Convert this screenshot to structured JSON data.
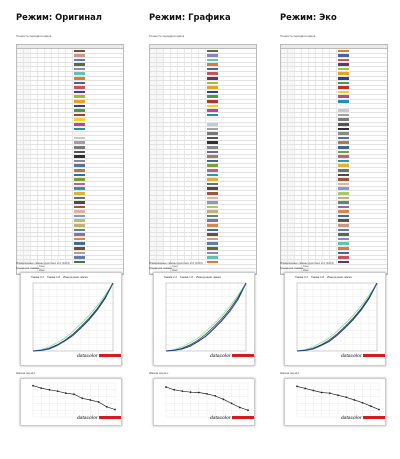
{
  "modes": [
    {
      "title": "Режим: Оригинал"
    },
    {
      "title": "Режим: Графика"
    },
    {
      "title": "Режим: Эко"
    }
  ],
  "captions": {
    "accuracy": "Точность передачи цвета",
    "gamma_heading": "Измеренные гаммы дисплея 2.2 (0.04)",
    "gamma_sub": "Градация гаммы",
    "brightness_heading": "Шкала серого",
    "footer_avg": "Сред.",
    "footer_max": "Макс."
  },
  "logo": {
    "text": "datacolor"
  },
  "swatch_colors": [
    "#6a5138",
    "#c69a88",
    "#5f7fa6",
    "#5a6b3d",
    "#8b86ba",
    "#66c2b0",
    "#e07a2e",
    "#4a5fa6",
    "#c4555e",
    "#5b3a6b",
    "#9fc13a",
    "#e8a22c",
    "#2f3f8e",
    "#4b9a45",
    "#b2342c",
    "#f2cf2a",
    "#b8478b",
    "#1f8fb0",
    "#f5f5f5",
    "#c8c8c8",
    "#a1a1a1",
    "#7a7a7a",
    "#545454",
    "#303030",
    "#8a8a8a",
    "#5b6fa0",
    "#a77b5e",
    "#3d6b8f",
    "#7e9d3f",
    "#b5658a",
    "#2b9aa8",
    "#d9b23f",
    "#6f6f6f",
    "#4a4a4a",
    "#9a5a3a",
    "#e3b3a0",
    "#7da0c7",
    "#b0c46d",
    "#c0b07a",
    "#5a8a6f",
    "#8c6fa8",
    "#d18a4a",
    "#3f6d9a"
  ],
  "chart_data": [
    {
      "type": "line",
      "title": "Измеренные гаммы дисплея 2.2 (0.04)",
      "series": [
        {
          "name": "Гамма 2.2",
          "x": [
            0,
            10,
            20,
            30,
            40,
            50,
            60,
            70,
            80,
            90,
            100
          ],
          "y": [
            0,
            1,
            4,
            9,
            16,
            25,
            36,
            48,
            62,
            79,
            100
          ]
        },
        {
          "name": "Гамма 1.8",
          "x": [
            0,
            10,
            20,
            30,
            40,
            50,
            60,
            70,
            80,
            90,
            100
          ],
          "y": [
            0,
            2,
            6,
            12,
            19,
            29,
            40,
            52,
            66,
            82,
            100
          ]
        },
        {
          "name": "Измеренная гамма",
          "x": [
            0,
            10,
            20,
            30,
            40,
            50,
            60,
            70,
            80,
            90,
            100
          ],
          "y": [
            0,
            1,
            3,
            8,
            15,
            23,
            34,
            46,
            60,
            77,
            100
          ]
        }
      ],
      "xlim": [
        0,
        100
      ],
      "ylim": [
        0,
        100
      ]
    },
    {
      "type": "line",
      "title": "Шкала серого",
      "series": [
        {
          "name": "Яркость",
          "x": [
            0,
            10,
            20,
            30,
            40,
            50,
            60,
            70,
            80,
            90,
            100
          ],
          "y": [
            92,
            85,
            80,
            76,
            70,
            67,
            55,
            50,
            44,
            30,
            22
          ]
        }
      ],
      "xlim": [
        0,
        100
      ],
      "ylim": [
        0,
        100
      ]
    },
    {
      "type": "line",
      "title": "Измеренные гаммы дисплея 2.2 (0.04)",
      "series": [
        {
          "name": "Гамма 2.2",
          "x": [
            0,
            10,
            20,
            30,
            40,
            50,
            60,
            70,
            80,
            90,
            100
          ],
          "y": [
            0,
            1,
            4,
            9,
            16,
            25,
            36,
            48,
            62,
            79,
            100
          ]
        },
        {
          "name": "Гамма 1.8",
          "x": [
            0,
            10,
            20,
            30,
            40,
            50,
            60,
            70,
            80,
            90,
            100
          ],
          "y": [
            0,
            2,
            6,
            12,
            19,
            29,
            40,
            52,
            66,
            82,
            100
          ]
        },
        {
          "name": "Измеренная гамма",
          "x": [
            0,
            10,
            20,
            30,
            40,
            50,
            60,
            70,
            80,
            90,
            100
          ],
          "y": [
            0,
            1,
            3,
            7,
            14,
            22,
            33,
            45,
            59,
            76,
            100
          ]
        }
      ],
      "xlim": [
        0,
        100
      ],
      "ylim": [
        0,
        100
      ]
    },
    {
      "type": "line",
      "title": "Шкала серого",
      "series": [
        {
          "name": "Яркость",
          "x": [
            0,
            10,
            20,
            30,
            40,
            50,
            60,
            70,
            80,
            90,
            100
          ],
          "y": [
            88,
            80,
            76,
            73,
            72,
            68,
            62,
            52,
            40,
            28,
            20
          ]
        }
      ],
      "xlim": [
        0,
        100
      ],
      "ylim": [
        0,
        100
      ]
    },
    {
      "type": "line",
      "title": "Измеренные гаммы дисплея 2.2 (0.04)",
      "series": [
        {
          "name": "Гамма 2.2",
          "x": [
            0,
            10,
            20,
            30,
            40,
            50,
            60,
            70,
            80,
            90,
            100
          ],
          "y": [
            0,
            1,
            4,
            9,
            16,
            25,
            36,
            48,
            62,
            79,
            100
          ]
        },
        {
          "name": "Гамма 1.8",
          "x": [
            0,
            10,
            20,
            30,
            40,
            50,
            60,
            70,
            80,
            90,
            100
          ],
          "y": [
            0,
            2,
            6,
            12,
            19,
            29,
            40,
            52,
            66,
            82,
            100
          ]
        },
        {
          "name": "Измеренная гамма",
          "x": [
            0,
            10,
            20,
            30,
            40,
            50,
            60,
            70,
            80,
            90,
            100
          ],
          "y": [
            0,
            1,
            3,
            8,
            14,
            23,
            34,
            46,
            60,
            77,
            100
          ]
        }
      ],
      "xlim": [
        0,
        100
      ],
      "ylim": [
        0,
        100
      ]
    },
    {
      "type": "line",
      "title": "Шкала серого",
      "series": [
        {
          "name": "Яркость",
          "x": [
            0,
            10,
            20,
            30,
            40,
            50,
            60,
            70,
            80,
            90,
            100
          ],
          "y": [
            90,
            84,
            78,
            72,
            70,
            64,
            58,
            50,
            42,
            32,
            22
          ]
        }
      ],
      "xlim": [
        0,
        100
      ],
      "ylim": [
        0,
        100
      ]
    }
  ],
  "colors": {
    "gamma22": "#2a2a2a",
    "gamma18": "#66e08a",
    "measured": "#1f3f8f",
    "brightness": "#222222",
    "grid": "#dddddd"
  }
}
